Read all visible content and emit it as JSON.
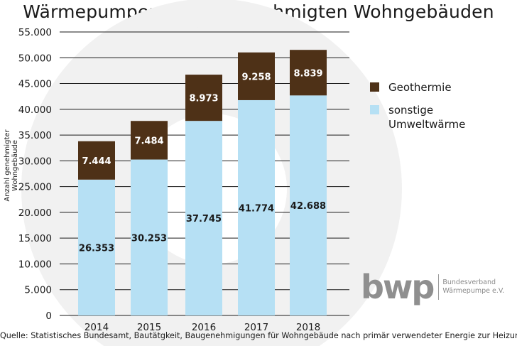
{
  "chart_data": {
    "type": "bar",
    "stacked": true,
    "title": "Wärmepumpen in neu genehmigten Wohngebäuden",
    "ylabel": "Anzahl genehmigter Wohngebäude",
    "xlabel": "",
    "categories": [
      "2014",
      "2015",
      "2016",
      "2017",
      "2018"
    ],
    "series": [
      {
        "name": "sonstige Umweltwärme",
        "values": [
          26353,
          30253,
          37745,
          41774,
          42688
        ],
        "labels": [
          "26.353",
          "30.253",
          "37.745",
          "41.774",
          "42.688"
        ],
        "color": "#b6e0f4"
      },
      {
        "name": "Geothermie",
        "values": [
          7444,
          7484,
          8973,
          9258,
          8839
        ],
        "labels": [
          "7.444",
          "7.484",
          "8.973",
          "9.258",
          "8.839"
        ],
        "color": "#4e3117"
      }
    ],
    "ylim": [
      0,
      55000
    ],
    "yticks": [
      0,
      5000,
      10000,
      15000,
      20000,
      25000,
      30000,
      35000,
      40000,
      45000,
      50000,
      55000
    ],
    "ytick_labels": [
      "0",
      "5.000",
      "10.000",
      "15.000",
      "20.000",
      "25.000",
      "30.000",
      "35.000",
      "40.000",
      "45.000",
      "50.000",
      "55.000"
    ],
    "grid": true,
    "legend": {
      "position": "right",
      "items": [
        {
          "lines": [
            "Geothermie"
          ],
          "color": "#4e3117"
        },
        {
          "lines": [
            "sonstige",
            "Umweltwärme"
          ],
          "color": "#b6e0f4"
        }
      ]
    }
  },
  "logo": {
    "mark": "bwp",
    "line1": "Bundesverband",
    "line2": "Wärmepumpe e.V."
  },
  "source": "Quelle: Statistisches Bundesamt, Bautätgkeit, Baugenehmigungen für Wohngebäude nach primär verwendeter Energie zur Heizung",
  "colors": {
    "grid": "#1a1a1a",
    "axis_text": "#1a1a1a",
    "watermark": "#f1f1f1"
  }
}
